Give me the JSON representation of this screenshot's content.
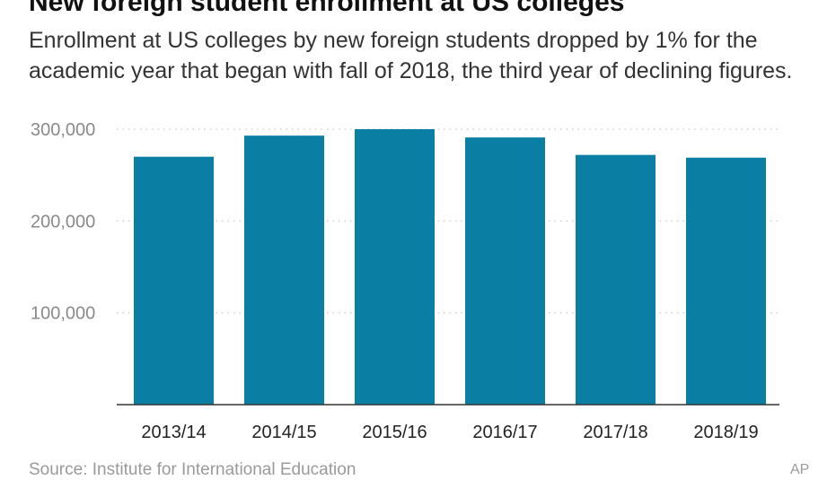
{
  "header": {
    "title": "New foreign student enrollment at US colleges",
    "subtitle": "Enrollment at US colleges by new foreign students dropped by 1% for the academic year that began with fall of 2018, the third year of declining figures."
  },
  "footer": {
    "source": "Source: Institute for International Education",
    "credit": "AP"
  },
  "colors": {
    "bar": "#0a7fa3",
    "grid": "#cfcfcf",
    "baseline": "#333333"
  },
  "chart_data": {
    "type": "bar",
    "categories": [
      "2013/14",
      "2014/15",
      "2015/16",
      "2016/17",
      "2017/18",
      "2018/19"
    ],
    "values": [
      270000,
      293000,
      300000,
      291000,
      272000,
      269000
    ],
    "ylim": [
      0,
      300000
    ],
    "yticks": [
      100000,
      200000,
      300000
    ],
    "ytick_labels": [
      "100,000",
      "200,000",
      "300,000"
    ],
    "grid": true
  }
}
